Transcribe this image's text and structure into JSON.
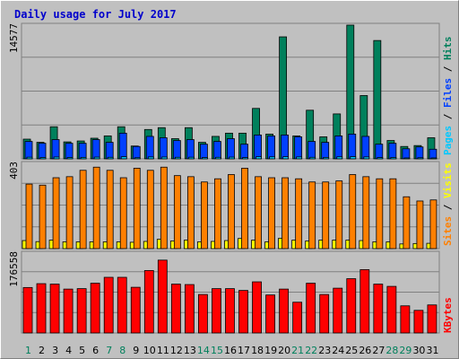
{
  "title": "Daily usage for July 2017",
  "colors": {
    "hits": "#00805c",
    "files": "#0040ff",
    "pages": "#00c8ff",
    "visits": "#ffff00",
    "sites": "#ff8000",
    "kbytes": "#ff0000",
    "weekend": "#00805c",
    "weekday": "#000000"
  },
  "chart_data": [
    {
      "type": "bar",
      "ylabel_parts": [
        "Hits",
        "Files",
        "Pages"
      ],
      "ymax_label": "14577",
      "ylim": [
        0,
        14577
      ],
      "categories": [
        "1",
        "2",
        "3",
        "4",
        "5",
        "6",
        "7",
        "8",
        "9",
        "10",
        "11",
        "12",
        "13",
        "14",
        "15",
        "16",
        "17",
        "18",
        "19",
        "20",
        "21",
        "22",
        "23",
        "24",
        "25",
        "26",
        "27",
        "28",
        "29",
        "30",
        "31"
      ],
      "series": [
        {
          "name": "Hits",
          "values": [
            2150,
            1800,
            3500,
            1850,
            1950,
            2250,
            2500,
            3500,
            1400,
            3200,
            3400,
            2200,
            3400,
            1800,
            2450,
            2800,
            2800,
            5500,
            2700,
            13300,
            2500,
            5300,
            2400,
            4900,
            14600,
            6900,
            12900,
            2000,
            1350,
            1450,
            2300
          ]
        },
        {
          "name": "Files",
          "values": [
            1900,
            1700,
            2100,
            1700,
            1700,
            2100,
            1800,
            2800,
            1350,
            2450,
            2300,
            2000,
            2100,
            1600,
            1900,
            2200,
            1600,
            2600,
            2500,
            2600,
            2400,
            1900,
            1800,
            2500,
            2700,
            2450,
            1600,
            1700,
            1100,
            1300,
            1050
          ]
        },
        {
          "name": "Pages",
          "values": [
            180,
            150,
            200,
            150,
            160,
            190,
            170,
            230,
            120,
            210,
            200,
            170,
            180,
            140,
            170,
            190,
            140,
            230,
            220,
            230,
            210,
            170,
            160,
            220,
            240,
            210,
            140,
            150,
            100,
            120,
            100
          ]
        }
      ]
    },
    {
      "type": "bar",
      "ylabel_parts": [
        "Visits",
        "Sites"
      ],
      "ymax_label": "403",
      "ylim": [
        0,
        403
      ],
      "series": [
        {
          "name": "Visits",
          "values": [
            38,
            33,
            40,
            32,
            32,
            32,
            32,
            32,
            30,
            34,
            44,
            36,
            40,
            32,
            34,
            38,
            48,
            40,
            32,
            49,
            40,
            36,
            40,
            40,
            40,
            38,
            32,
            32,
            22,
            24,
            25
          ]
        },
        {
          "name": "Sites",
          "values": [
            305,
            300,
            335,
            340,
            370,
            385,
            370,
            335,
            380,
            370,
            385,
            345,
            340,
            315,
            330,
            350,
            380,
            340,
            335,
            335,
            330,
            315,
            315,
            320,
            350,
            340,
            330,
            330,
            245,
            225,
            230
          ]
        }
      ]
    },
    {
      "type": "bar",
      "ylabel_parts": [
        "KBytes"
      ],
      "ymax_label": "176558",
      "ylim": [
        0,
        176558
      ],
      "series": [
        {
          "name": "KBytes",
          "values": [
            100500,
            109000,
            108000,
            97000,
            98000,
            110000,
            123000,
            123000,
            101000,
            138000,
            161000,
            108000,
            107000,
            85000,
            98000,
            98000,
            94000,
            113000,
            84000,
            97000,
            68000,
            110000,
            85000,
            99000,
            120000,
            140000,
            108000,
            103000,
            60000,
            50000,
            62000
          ]
        }
      ]
    }
  ]
}
